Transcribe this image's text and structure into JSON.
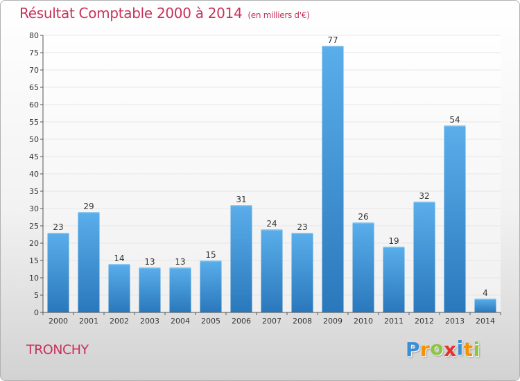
{
  "colors": {
    "title": "#c8325a",
    "bar_top": "#5aaeea",
    "bar_bottom": "#2a78bc",
    "grid": "#e6e6e6",
    "axis": "#555555",
    "text": "#333333"
  },
  "chart_data": {
    "type": "bar",
    "title": "Résultat Comptable 2000 à 2014",
    "subtitle": "(en milliers d'€)",
    "xlabel": "",
    "ylabel": "",
    "ylim": [
      0,
      80
    ],
    "ytick_step": 5,
    "grid": true,
    "categories": [
      "2000",
      "2001",
      "2002",
      "2003",
      "2004",
      "2005",
      "2006",
      "2007",
      "2008",
      "2009",
      "2010",
      "2011",
      "2012",
      "2013",
      "2014"
    ],
    "values": [
      23,
      29,
      14,
      13,
      13,
      15,
      31,
      24,
      23,
      77,
      26,
      19,
      32,
      54,
      4
    ]
  },
  "place_name": "TRONCHY",
  "logo": {
    "text": "Proxiti",
    "letters": [
      {
        "ch": "P",
        "color": "#3a8fd6"
      },
      {
        "ch": "r",
        "color": "#f39200"
      },
      {
        "ch": "o",
        "color": "#8cc63f"
      },
      {
        "ch": "x",
        "color": "#e6332a"
      },
      {
        "ch": "i",
        "color": "#3a8fd6"
      },
      {
        "ch": "t",
        "color": "#f39200"
      },
      {
        "ch": "i",
        "color": "#8cc63f"
      }
    ]
  }
}
